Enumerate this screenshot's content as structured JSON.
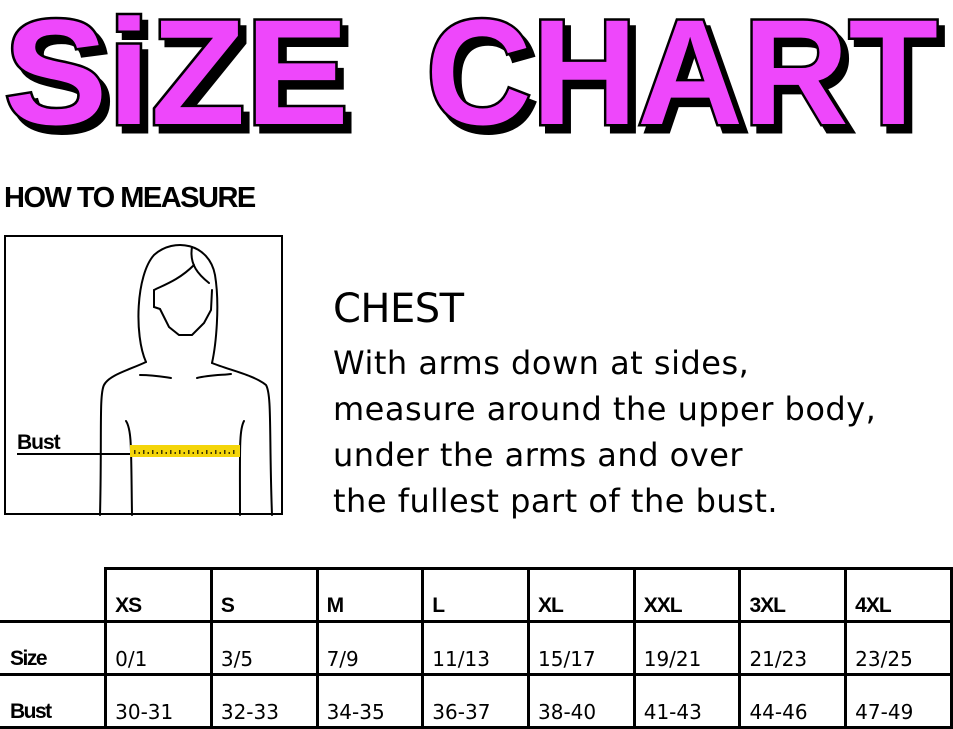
{
  "title": "SiZE CHART",
  "title_parts": [
    "SiZE",
    "CHART"
  ],
  "title_color": "#ee47fb",
  "how_to_measure": "HOW TO MEASURE",
  "illustration": {
    "label": "Bust",
    "tape_color": "#f4d50a"
  },
  "chest": {
    "heading": "CHEST",
    "lines": [
      "With arms down at sides,",
      "measure around the upper body,",
      "under the arms and over",
      "the fullest part of the bust."
    ]
  },
  "table": {
    "columns": [
      "XS",
      "S",
      "M",
      "L",
      "XL",
      "XXL",
      "3XL",
      "4XL"
    ],
    "rows": [
      {
        "label": "Size",
        "values": [
          "0/1",
          "3/5",
          "7/9",
          "11/13",
          "15/17",
          "19/21",
          "21/23",
          "23/25"
        ]
      },
      {
        "label": "Bust",
        "values": [
          "30-31",
          "32-33",
          "34-35",
          "36-37",
          "38-40",
          "41-43",
          "44-46",
          "47-49"
        ]
      }
    ]
  }
}
